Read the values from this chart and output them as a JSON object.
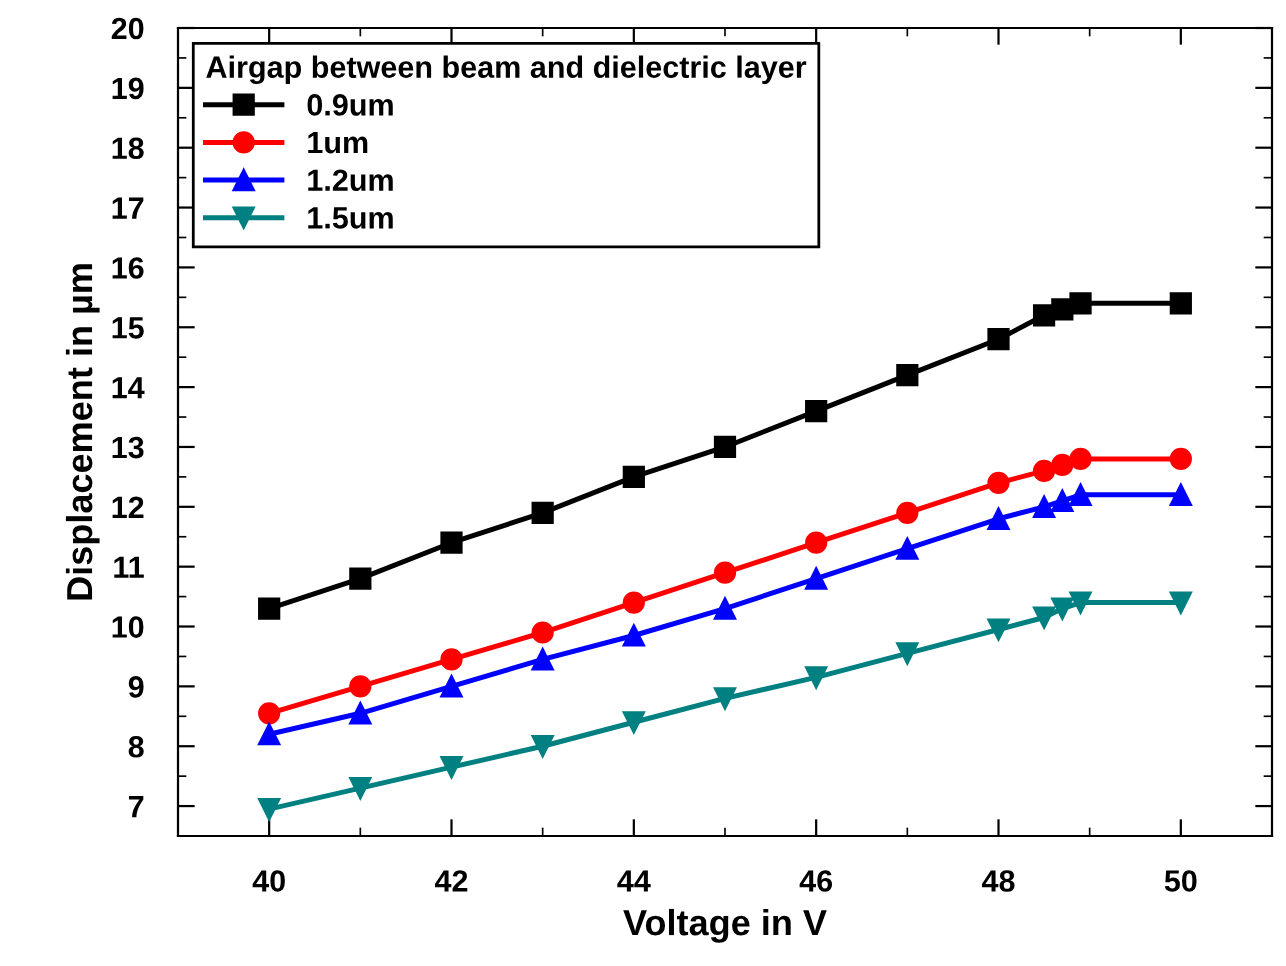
{
  "chart_data": {
    "type": "line",
    "xlabel": "Voltage in V",
    "ylabel": "Displacement in µm",
    "legend_title": "Airgap between beam and dielectric layer",
    "legend": "top left",
    "grid": false,
    "x": [
      40,
      41,
      42,
      43,
      44,
      45,
      46,
      47,
      48,
      48.5,
      48.7,
      48.9,
      50
    ],
    "xlim": [
      39,
      51
    ],
    "xticks": [
      40,
      42,
      44,
      46,
      48,
      50
    ],
    "ylim": [
      6.5,
      20
    ],
    "yticks": [
      7,
      8,
      9,
      10,
      11,
      12,
      13,
      14,
      15,
      16,
      17,
      18,
      19,
      20
    ],
    "series": [
      {
        "name": "0.9um",
        "color": "#000000",
        "marker": "square",
        "values": [
          10.3,
          10.8,
          11.4,
          11.9,
          12.5,
          13.0,
          13.6,
          14.2,
          14.8,
          15.2,
          15.3,
          15.4,
          15.4
        ]
      },
      {
        "name": "1um",
        "color": "#ff0000",
        "marker": "circle",
        "values": [
          8.55,
          9.0,
          9.45,
          9.9,
          10.4,
          10.9,
          11.4,
          11.9,
          12.4,
          12.6,
          12.7,
          12.8,
          12.8
        ]
      },
      {
        "name": "1.2um",
        "color": "#0000ff",
        "marker": "triangle",
        "values": [
          8.2,
          8.55,
          9.0,
          9.45,
          9.85,
          10.3,
          10.8,
          11.3,
          11.8,
          12.0,
          12.1,
          12.2,
          12.2
        ]
      },
      {
        "name": "1.5um",
        "color": "#008080",
        "marker": "triangle_down",
        "values": [
          6.95,
          7.3,
          7.65,
          8.0,
          8.4,
          8.8,
          9.15,
          9.55,
          9.95,
          10.15,
          10.3,
          10.4,
          10.4
        ]
      }
    ]
  }
}
